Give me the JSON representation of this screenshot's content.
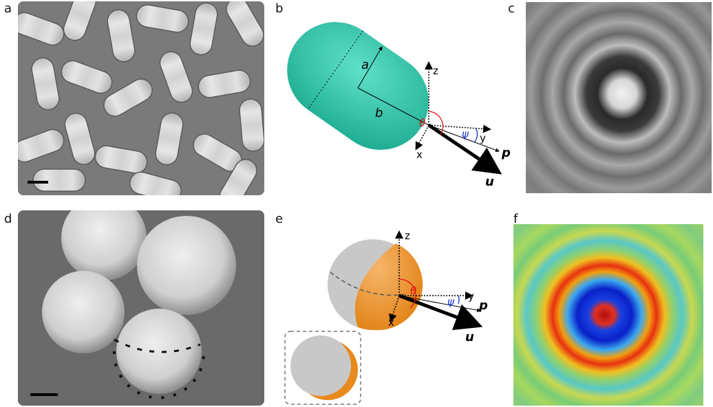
{
  "panels": {
    "a": {
      "label": "a"
    },
    "b": {
      "label": "b",
      "axis_z": "z",
      "axis_y": "y",
      "axis_x": "x",
      "semi_a": "a",
      "semi_b": "b",
      "theta": "θ",
      "psi": "ψ",
      "vec_p": "p",
      "vec_u": "u"
    },
    "c": {
      "label": "c"
    },
    "d": {
      "label": "d"
    },
    "e": {
      "label": "e",
      "axis_z": "z",
      "axis_y": "y",
      "axis_x": "x",
      "theta": "θ",
      "psi": "ψ",
      "vec_p": "p",
      "vec_u": "u"
    },
    "f": {
      "label": "f"
    }
  },
  "colors": {
    "rod": "#2ec4a6",
    "janus_orange": "#e88a1e",
    "janus_grey": "#c8c8c8",
    "theta_arc": "#e01010",
    "psi_arc": "#1030d0"
  }
}
